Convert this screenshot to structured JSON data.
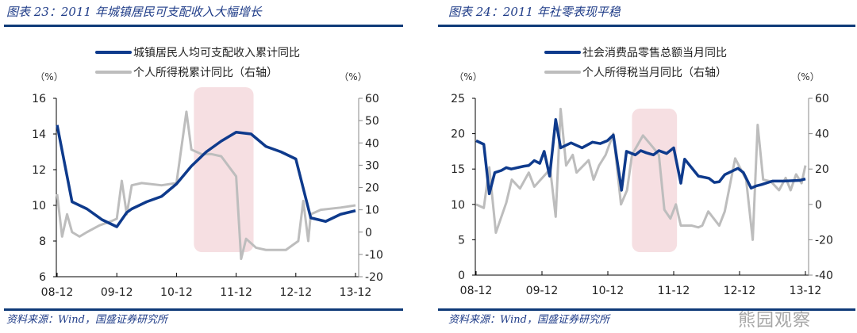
{
  "chart_data": [
    {
      "type": "line",
      "title": "图表 23：2011 年城镇居民可支配收入大幅增长",
      "source": "资料来源：Wind，国盛证券研究所",
      "ylabel_left": "（%）",
      "ylabel_right": "（%）",
      "x_ticks": [
        "08-12",
        "09-12",
        "10-12",
        "11-12",
        "12-12",
        "13-12"
      ],
      "x_tick_months": [
        0,
        12,
        24,
        36,
        48,
        60
      ],
      "ylim_left": [
        6,
        16
      ],
      "yticks_left": [
        6,
        8,
        10,
        12,
        14,
        16
      ],
      "ylim_right": [
        -20,
        60
      ],
      "yticks_right": [
        -20,
        -10,
        0,
        10,
        20,
        30,
        40,
        50,
        60
      ],
      "highlight_months": [
        27.5,
        39.5
      ],
      "series": [
        {
          "name": "城镇居民人均可支配收入累计同比",
          "axis": "left",
          "color": "#0e3a8c",
          "points": [
            [
              0,
              14.5
            ],
            [
              3,
              10.2
            ],
            [
              6,
              9.8
            ],
            [
              9,
              9.2
            ],
            [
              12,
              8.8
            ],
            [
              14,
              9.6
            ],
            [
              15,
              9.8
            ],
            [
              18,
              10.2
            ],
            [
              21,
              10.5
            ],
            [
              24,
              11.2
            ],
            [
              27,
              12.2
            ],
            [
              30,
              13.0
            ],
            [
              33,
              13.6
            ],
            [
              36,
              14.1
            ],
            [
              39,
              14.0
            ],
            [
              42,
              13.3
            ],
            [
              45,
              13.0
            ],
            [
              48,
              12.6
            ],
            [
              51,
              9.3
            ],
            [
              54,
              9.1
            ],
            [
              57,
              9.5
            ],
            [
              60,
              9.7
            ]
          ]
        },
        {
          "name": "个人所得税累计同比（右轴）",
          "axis": "right",
          "color": "#bdbdbd",
          "points": [
            [
              0,
              17
            ],
            [
              1,
              -2
            ],
            [
              2,
              8
            ],
            [
              3,
              0
            ],
            [
              4.5,
              -2
            ],
            [
              6,
              0
            ],
            [
              8.5,
              3
            ],
            [
              11,
              5
            ],
            [
              12,
              6
            ],
            [
              13,
              23
            ],
            [
              14,
              8
            ],
            [
              15,
              21
            ],
            [
              17,
              22
            ],
            [
              21,
              21
            ],
            [
              24,
              22
            ],
            [
              26,
              54
            ],
            [
              27,
              37
            ],
            [
              29,
              35
            ],
            [
              31,
              35
            ],
            [
              33,
              34
            ],
            [
              36,
              25
            ],
            [
              37,
              -12
            ],
            [
              38,
              -3
            ],
            [
              40,
              -7
            ],
            [
              42,
              -8
            ],
            [
              46,
              -8
            ],
            [
              48.5,
              -4
            ],
            [
              49.5,
              14
            ],
            [
              50.5,
              -4
            ],
            [
              51,
              8
            ],
            [
              53,
              10
            ],
            [
              57,
              11
            ],
            [
              60,
              12
            ]
          ]
        }
      ]
    },
    {
      "type": "line",
      "title": "图表 24：2011 年社零表现平稳",
      "source": "资料来源：Wind，国盛证券研究所",
      "ylabel_left": "（%）",
      "ylabel_right": "（%）",
      "x_ticks": [
        "08-12",
        "09-12",
        "10-12",
        "11-12",
        "12-12",
        "13-12"
      ],
      "x_tick_months": [
        0,
        12,
        24,
        36,
        48,
        60
      ],
      "ylim_left": [
        0,
        25
      ],
      "yticks_left": [
        0,
        5,
        10,
        15,
        20,
        25
      ],
      "ylim_right": [
        -40,
        60
      ],
      "yticks_right": [
        -40,
        -20,
        0,
        20,
        40,
        60
      ],
      "highlight_months": [
        28.4,
        36.6
      ],
      "series": [
        {
          "name": "社会消费品零售总额当月同比",
          "axis": "left",
          "color": "#0e3a8c",
          "points": [
            [
              0,
              19
            ],
            [
              1.4,
              18.5
            ],
            [
              2.4,
              11.5
            ],
            [
              3.4,
              14.5
            ],
            [
              4.6,
              14.8
            ],
            [
              5.5,
              15.2
            ],
            [
              6.4,
              15
            ],
            [
              8.7,
              15.4
            ],
            [
              9.6,
              15.5
            ],
            [
              10.6,
              16.2
            ],
            [
              11.6,
              15.8
            ],
            [
              12.4,
              17.5
            ],
            [
              13.4,
              14
            ],
            [
              14.5,
              22
            ],
            [
              15.4,
              18
            ],
            [
              17.3,
              18.7
            ],
            [
              19.3,
              18
            ],
            [
              21.2,
              18.8
            ],
            [
              22.6,
              18.6
            ],
            [
              23.9,
              19
            ],
            [
              25,
              19.8
            ],
            [
              26.5,
              12
            ],
            [
              27.4,
              17.5
            ],
            [
              29,
              17
            ],
            [
              30,
              17.6
            ],
            [
              31,
              17.3
            ],
            [
              32.3,
              17
            ],
            [
              33.3,
              17.6
            ],
            [
              34.7,
              17.2
            ],
            [
              36,
              18
            ],
            [
              37.3,
              13
            ],
            [
              38,
              16.4
            ],
            [
              40.5,
              14
            ],
            [
              42.4,
              13.7
            ],
            [
              43.4,
              13.1
            ],
            [
              44.3,
              13.2
            ],
            [
              45.3,
              14.2
            ],
            [
              47.7,
              15.1
            ],
            [
              48.7,
              14.5
            ],
            [
              50.1,
              12.3
            ],
            [
              51,
              12.6
            ],
            [
              52,
              12.8
            ],
            [
              54,
              13.3
            ],
            [
              56,
              13.3
            ],
            [
              59,
              13.4
            ],
            [
              60,
              13.6
            ]
          ]
        },
        {
          "name": "个人所得税当月同比（右轴）",
          "axis": "right",
          "color": "#bdbdbd",
          "points": [
            [
              0,
              0
            ],
            [
              1.4,
              -2
            ],
            [
              2.4,
              21
            ],
            [
              3.6,
              -16
            ],
            [
              5.5,
              1
            ],
            [
              6.5,
              14
            ],
            [
              8,
              9
            ],
            [
              9.6,
              18
            ],
            [
              10.6,
              10
            ],
            [
              13.5,
              20
            ],
            [
              14.5,
              -7
            ],
            [
              15.4,
              54
            ],
            [
              16.4,
              22
            ],
            [
              17.6,
              28
            ],
            [
              18.3,
              18
            ],
            [
              20.5,
              25
            ],
            [
              21.4,
              14
            ],
            [
              22.4,
              22
            ],
            [
              23.6,
              28
            ],
            [
              25,
              40
            ],
            [
              26.4,
              0
            ],
            [
              27.5,
              8
            ],
            [
              28.4,
              28
            ],
            [
              30.4,
              39
            ],
            [
              32.3,
              32
            ],
            [
              33.3,
              28
            ],
            [
              34.3,
              -3
            ],
            [
              35.4,
              -8
            ],
            [
              36.4,
              0
            ],
            [
              37.3,
              -12
            ],
            [
              39.3,
              -12
            ],
            [
              40.5,
              -13
            ],
            [
              41.2,
              -12
            ],
            [
              42.3,
              -4
            ],
            [
              44.3,
              -12
            ],
            [
              45.3,
              -4
            ],
            [
              47.2,
              26
            ],
            [
              49.2,
              14
            ],
            [
              50.4,
              -20
            ],
            [
              51.3,
              45
            ],
            [
              52.3,
              14
            ],
            [
              53.7,
              13
            ],
            [
              55.2,
              8
            ],
            [
              56.4,
              15
            ],
            [
              57.3,
              8
            ],
            [
              58.3,
              17
            ],
            [
              59.3,
              12
            ],
            [
              60,
              22
            ]
          ]
        }
      ]
    }
  ],
  "watermark": "熊园观察"
}
